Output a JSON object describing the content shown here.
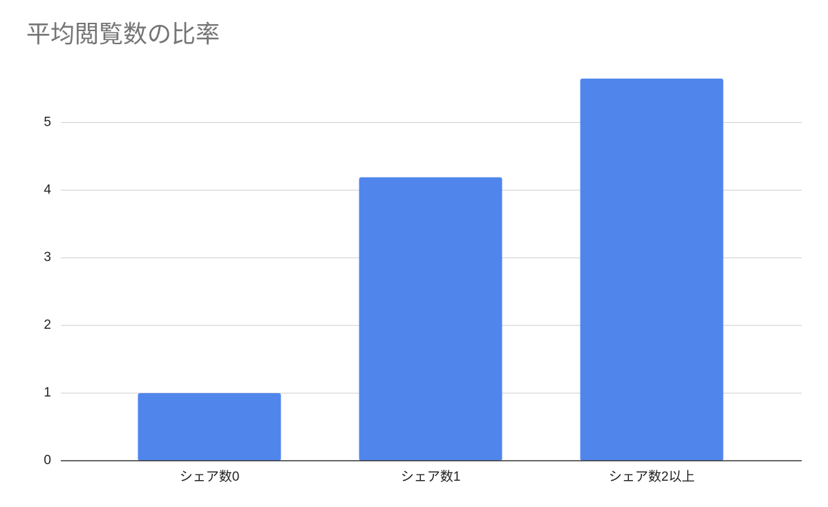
{
  "chart_data": {
    "type": "bar",
    "title": "平均閲覧数の比率",
    "categories": [
      "シェア数0",
      "シェア数1",
      "シェア数2以上"
    ],
    "values": [
      1,
      4.19,
      5.65
    ],
    "color": "#5086ec",
    "ylim": [
      0,
      5.8
    ],
    "yticks": [
      0,
      1,
      2,
      3,
      4,
      5
    ],
    "grid": true
  }
}
